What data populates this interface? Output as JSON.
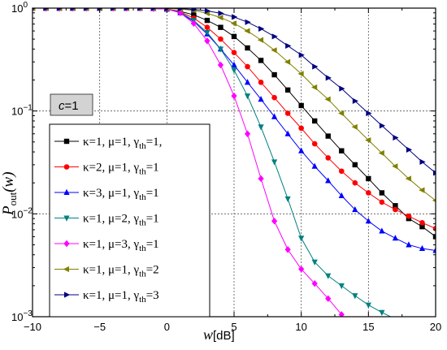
{
  "chart_data": {
    "type": "line",
    "title": "",
    "xlabel": {
      "main": "w",
      "unit": "[dB]"
    },
    "ylabel": {
      "main": "P",
      "sub": "out",
      "arg": "(w)"
    },
    "xlim": [
      -10,
      20
    ],
    "ylim": [
      0.001,
      1
    ],
    "yscale": "log",
    "grid": true,
    "legend_position": "bottom-left",
    "annotation": {
      "italic": "c",
      "rest": "=1"
    },
    "x_ticks": [
      "-10",
      "-5",
      "0",
      "5",
      "10",
      "15",
      "20"
    ],
    "y_ticks": [
      {
        "value": 1,
        "base": "10",
        "exp": "0"
      },
      {
        "value": 0.1,
        "base": "10",
        "exp": "-1"
      },
      {
        "value": 0.01,
        "base": "10",
        "exp": "-2"
      },
      {
        "value": 0.001,
        "base": "10",
        "exp": "-3"
      }
    ],
    "series": [
      {
        "legend": {
          "k": "κ=1,",
          "m": "μ=1,",
          "g": "γ",
          "gsub": "th",
          "gval": "=1,"
        },
        "color": "#000000",
        "marker": "square",
        "x": [
          -10,
          -9,
          -8,
          -7,
          -6,
          -5,
          -4,
          -3,
          -2,
          -1,
          0,
          1,
          2,
          3,
          4,
          5,
          6,
          7,
          8,
          9,
          10,
          11,
          12,
          13,
          14,
          15,
          16,
          17,
          18,
          19,
          20
        ],
        "y": [
          1,
          1,
          1,
          1,
          1,
          1,
          1,
          1,
          1,
          0.995,
          0.98,
          0.93,
          0.86,
          0.76,
          0.65,
          0.53,
          0.41,
          0.31,
          0.225,
          0.16,
          0.113,
          0.08,
          0.057,
          0.041,
          0.03,
          0.022,
          0.016,
          0.012,
          0.009,
          0.0075,
          0.006
        ]
      },
      {
        "legend": {
          "k": "κ=2,",
          "m": "μ=1,",
          "g": "γ",
          "gsub": "th",
          "gval": "=1"
        },
        "color": "#ff0000",
        "marker": "circle",
        "x": [
          -10,
          -9,
          -8,
          -7,
          -6,
          -5,
          -4,
          -3,
          -2,
          -1,
          0,
          1,
          2,
          3,
          4,
          5,
          6,
          7,
          8,
          9,
          10,
          11,
          12,
          13,
          14,
          15,
          16,
          17,
          18,
          19,
          20
        ],
        "y": [
          1,
          1,
          1,
          1,
          1,
          1,
          1,
          1,
          1,
          0.995,
          0.985,
          0.92,
          0.8,
          0.65,
          0.5,
          0.37,
          0.27,
          0.19,
          0.135,
          0.095,
          0.068,
          0.048,
          0.035,
          0.026,
          0.02,
          0.016,
          0.013,
          0.011,
          0.0095,
          0.0082,
          0.0072
        ]
      },
      {
        "legend": {
          "k": "κ=3,",
          "m": "μ=1,",
          "g": "γ",
          "gsub": "th",
          "gval": "=1"
        },
        "color": "#0000ff",
        "marker": "triangle-up",
        "x": [
          -10,
          -9,
          -8,
          -7,
          -6,
          -5,
          -4,
          -3,
          -2,
          -1,
          0,
          1,
          2,
          3,
          4,
          5,
          6,
          7,
          8,
          9,
          10,
          11,
          12,
          13,
          14,
          15,
          16,
          17,
          18,
          19,
          20
        ],
        "y": [
          1,
          1,
          1,
          1,
          1,
          1,
          1,
          1,
          1,
          0.99,
          0.98,
          0.9,
          0.74,
          0.56,
          0.4,
          0.28,
          0.19,
          0.13,
          0.088,
          0.06,
          0.041,
          0.029,
          0.021,
          0.015,
          0.011,
          0.0085,
          0.0068,
          0.0058,
          0.005,
          0.0046,
          0.0044
        ]
      },
      {
        "legend": {
          "k": "κ=1,",
          "m": "μ=2,",
          "g": "γ",
          "gsub": "th",
          "gval": "=1"
        },
        "color": "#008080",
        "marker": "triangle-down",
        "x": [
          -10,
          -9,
          -8,
          -7,
          -6,
          -5,
          -4,
          -3,
          -2,
          -1,
          0,
          1,
          2,
          3,
          4,
          5,
          6,
          7,
          8,
          9,
          10,
          11,
          12,
          13,
          14,
          15,
          16,
          17
        ],
        "y": [
          1,
          1,
          1,
          1,
          1,
          1,
          1,
          1,
          1,
          0.99,
          0.98,
          0.91,
          0.76,
          0.58,
          0.4,
          0.25,
          0.14,
          0.07,
          0.032,
          0.014,
          0.0058,
          0.0034,
          0.0025,
          0.002,
          0.0016,
          0.0013,
          0.0011,
          0.00095
        ]
      },
      {
        "legend": {
          "k": "κ=1,",
          "m": "μ=3,",
          "g": "γ",
          "gsub": "th",
          "gval": "=1"
        },
        "color": "#ff00ff",
        "marker": "diamond",
        "x": [
          -10,
          -9,
          -8,
          -7,
          -6,
          -5,
          -4,
          -3,
          -2,
          -1,
          0,
          1,
          2,
          3,
          4,
          5,
          6,
          7,
          8,
          9,
          10,
          11,
          12,
          13
        ],
        "y": [
          1,
          1,
          1,
          1,
          1,
          1,
          1,
          1,
          1,
          0.99,
          0.98,
          0.9,
          0.71,
          0.48,
          0.28,
          0.14,
          0.06,
          0.022,
          0.0085,
          0.0045,
          0.0029,
          0.0021,
          0.0015,
          0.00105
        ]
      },
      {
        "legend": {
          "k": "κ=1,",
          "m": "μ=1,",
          "g": "γ",
          "gsub": "th",
          "gval": "=2"
        },
        "color": "#808000",
        "marker": "triangle-left",
        "x": [
          -10,
          -9,
          -8,
          -7,
          -6,
          -5,
          -4,
          -3,
          -2,
          -1,
          0,
          1,
          2,
          3,
          4,
          5,
          6,
          7,
          8,
          9,
          10,
          11,
          12,
          13,
          14,
          15,
          16,
          17,
          18,
          19,
          20
        ],
        "y": [
          1,
          1,
          1,
          1,
          1,
          1,
          1,
          1,
          1,
          1,
          0.995,
          0.98,
          0.95,
          0.89,
          0.81,
          0.71,
          0.6,
          0.49,
          0.39,
          0.3,
          0.23,
          0.17,
          0.13,
          0.095,
          0.07,
          0.052,
          0.039,
          0.029,
          0.022,
          0.017,
          0.0135
        ]
      },
      {
        "legend": {
          "k": "κ=1,",
          "m": "μ=1,",
          "g": "γ",
          "gsub": "th",
          "gval": "=3"
        },
        "color": "#000080",
        "marker": "triangle-right",
        "x": [
          -10,
          -9,
          -8,
          -7,
          -6,
          -5,
          -4,
          -3,
          -2,
          -1,
          0,
          1,
          2,
          3,
          4,
          5,
          6,
          7,
          8,
          9,
          10,
          11,
          12,
          13,
          14,
          15,
          16,
          17,
          18,
          19,
          20
        ],
        "y": [
          1,
          1,
          1,
          1,
          1,
          1,
          1,
          1,
          1,
          1,
          1,
          0.99,
          0.97,
          0.94,
          0.89,
          0.82,
          0.73,
          0.63,
          0.53,
          0.43,
          0.35,
          0.27,
          0.21,
          0.165,
          0.125,
          0.095,
          0.072,
          0.055,
          0.042,
          0.032,
          0.025
        ]
      }
    ]
  }
}
